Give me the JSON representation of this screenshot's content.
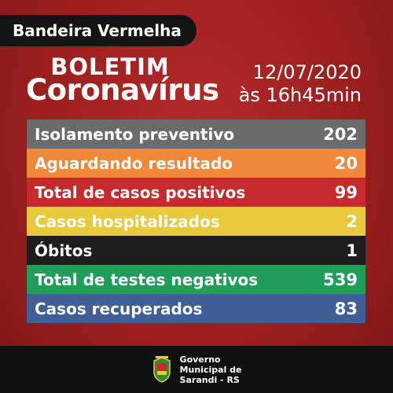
{
  "tag": "Bandeira Vermelha",
  "header": {
    "title_line1": "BOLETIM",
    "title_line2": "Coronavírus",
    "date": "12/07/2020",
    "time": "às 16h45min"
  },
  "rows": [
    {
      "label": "Isolamento preventivo",
      "value": "202",
      "color": "#6b6b6b"
    },
    {
      "label": "Aguardando resultado",
      "value": "20",
      "color": "#f0883a"
    },
    {
      "label": "Total de casos positivos",
      "value": "99",
      "color": "#c62a2a"
    },
    {
      "label": "Casos hospitalizados",
      "value": "2",
      "color": "#e8c93c"
    },
    {
      "label": "Óbitos",
      "value": "1",
      "color": "#1e1e1e"
    },
    {
      "label": "Total de testes negativos",
      "value": "539",
      "color": "#1f9e5a"
    },
    {
      "label": "Casos recuperados",
      "value": "83",
      "color": "#3f5f96"
    }
  ],
  "footer": {
    "line1": "Governo",
    "line2": "Municipal de",
    "line3": "Sarandi - RS",
    "crest_icon": "municipal-crest-icon"
  }
}
